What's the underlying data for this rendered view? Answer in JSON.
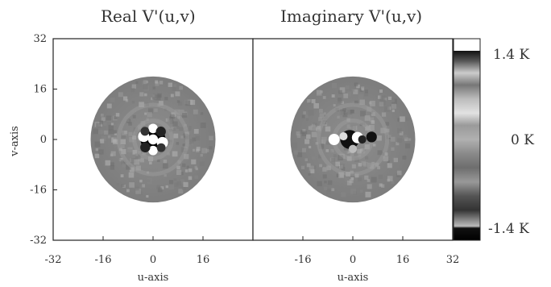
{
  "chart_data": [
    {
      "type": "heatmap",
      "title": "Real V'(u,v)",
      "xlabel": "u-axis",
      "ylabel": "v-axis",
      "xlim": [
        -32,
        32
      ],
      "ylim": [
        -32,
        32
      ],
      "x_ticks": [
        "-32",
        "-16",
        "0",
        "16"
      ],
      "y_ticks": [
        "32",
        "16",
        "0",
        "-16",
        "-32"
      ],
      "disk_radius": 20,
      "grid": false
    },
    {
      "type": "heatmap",
      "title": "Imaginary V'(u,v)",
      "xlabel": "u-axis",
      "ylabel": "",
      "xlim": [
        -32,
        32
      ],
      "ylim": [
        -32,
        32
      ],
      "x_ticks": [
        "-16",
        "0",
        "16",
        "32"
      ],
      "disk_radius": 20,
      "grid": false
    }
  ],
  "colorbar": {
    "max_label": "1.4 K",
    "zero_label": "0 K",
    "min_label": "-1.4 K",
    "range": [
      -1.4,
      1.4
    ]
  }
}
